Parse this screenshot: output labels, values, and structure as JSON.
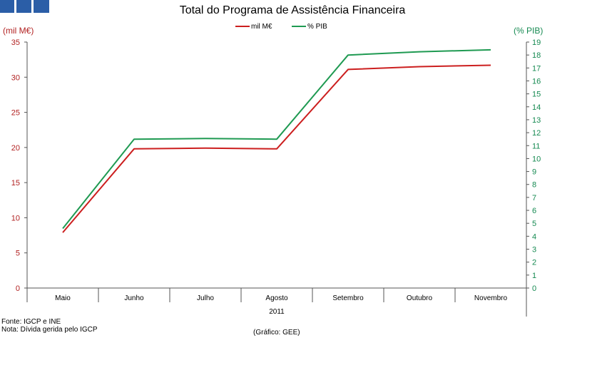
{
  "brand": {
    "color": "#2b5ea7",
    "icon": "three-blue-squares-logo"
  },
  "colors": {
    "mil": "#cc1f1f",
    "pib": "#1f9a52",
    "left_axis": "#b22222",
    "right_axis": "#168a52"
  },
  "source": "Fonte: IGCP e INE",
  "note": "Nota: Dívida gerida pelo IGCP",
  "credit": "(Gráfico: GEE)",
  "chart_data": {
    "type": "line",
    "title": "Total do Programa de Assistência Financeira",
    "categories": [
      "Maio",
      "Junho",
      "Julho",
      "Agosto",
      "Setembro",
      "Outubro",
      "Novembro"
    ],
    "xlabel": "2011",
    "ylabel": "(mil M€)",
    "y2label": "(% PIB)",
    "ylim": [
      0,
      35
    ],
    "y2lim": [
      0,
      19
    ],
    "yticks": [
      0,
      5,
      10,
      15,
      20,
      25,
      30,
      35
    ],
    "y2ticks": [
      0,
      1,
      2,
      3,
      4,
      5,
      6,
      7,
      8,
      9,
      10,
      11,
      12,
      13,
      14,
      15,
      16,
      17,
      18,
      19
    ],
    "legend_position": "top-center",
    "grid": false,
    "series": [
      {
        "name": "mil M€",
        "axis": "left",
        "values": [
          7.9,
          19.8,
          19.9,
          19.8,
          31.1,
          31.5,
          31.7
        ]
      },
      {
        "name": "% PIB",
        "axis": "right",
        "values": [
          4.6,
          11.5,
          11.55,
          11.5,
          18.0,
          18.25,
          18.4
        ]
      }
    ]
  }
}
